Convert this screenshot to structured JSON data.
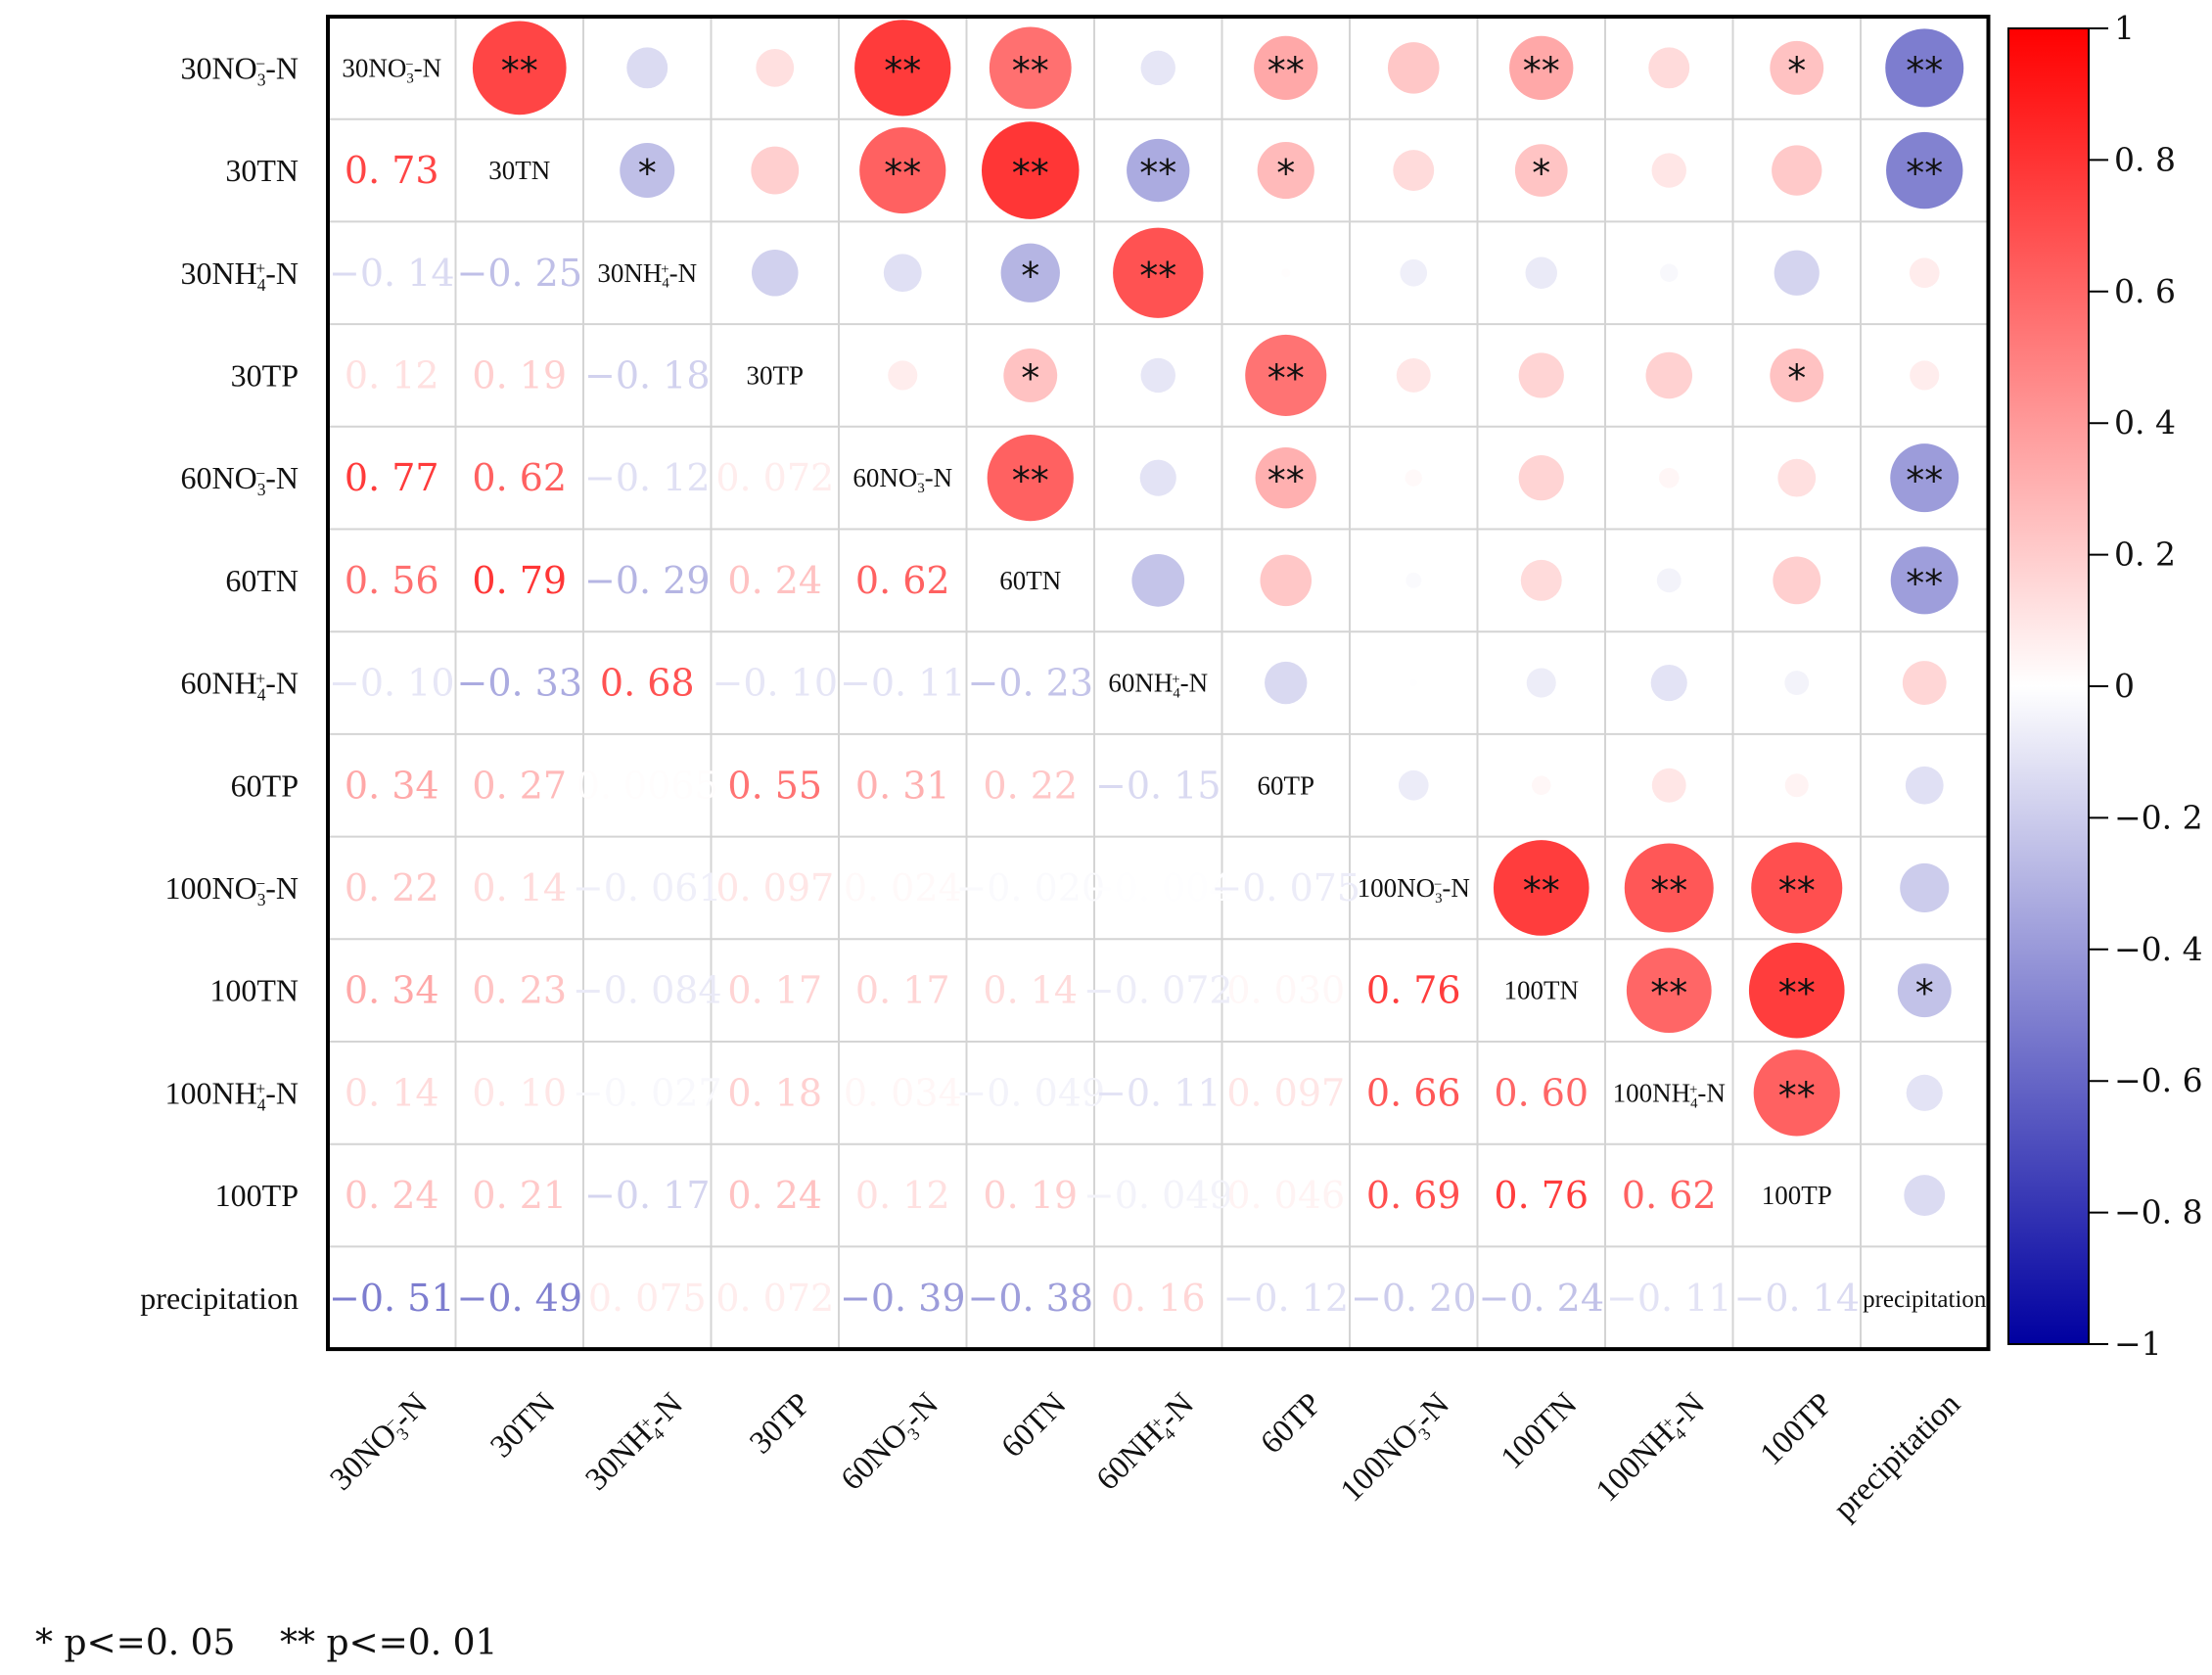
{
  "chart_data": {
    "type": "heatmap",
    "subtype": "correlation-matrix",
    "variables": [
      "30NO3-N",
      "30TN",
      "30NH4-N",
      "30TP",
      "60NO3-N",
      "60TN",
      "60NH4-N",
      "60TP",
      "100NO3-N",
      "100TN",
      "100NH4-N",
      "100TP",
      "precipitation"
    ],
    "matrix": [
      [
        1.0,
        0.73,
        -0.14,
        0.12,
        0.77,
        0.56,
        -0.1,
        0.34,
        0.22,
        0.34,
        0.14,
        0.24,
        -0.51
      ],
      [
        0.73,
        1.0,
        -0.25,
        0.19,
        0.62,
        0.79,
        -0.33,
        0.27,
        0.14,
        0.23,
        0.1,
        0.21,
        -0.49
      ],
      [
        -0.14,
        -0.25,
        1.0,
        -0.18,
        -0.12,
        -0.29,
        0.68,
        0.0065,
        -0.061,
        -0.084,
        -0.027,
        -0.17,
        0.075
      ],
      [
        0.12,
        0.19,
        -0.18,
        1.0,
        0.072,
        0.24,
        -0.1,
        0.55,
        0.097,
        0.17,
        0.18,
        0.24,
        0.072
      ],
      [
        0.77,
        0.62,
        -0.12,
        0.072,
        1.0,
        0.62,
        -0.11,
        0.31,
        0.024,
        0.17,
        0.034,
        0.12,
        -0.39
      ],
      [
        0.56,
        0.79,
        -0.29,
        0.24,
        0.62,
        1.0,
        -0.23,
        0.22,
        -0.02,
        0.14,
        -0.049,
        0.19,
        -0.38
      ],
      [
        -0.1,
        -0.33,
        0.68,
        -0.1,
        -0.11,
        -0.23,
        1.0,
        -0.15,
        -0.004,
        -0.072,
        -0.11,
        -0.049,
        0.16
      ],
      [
        0.34,
        0.27,
        0.0065,
        0.55,
        0.31,
        0.22,
        -0.15,
        1.0,
        -0.075,
        0.03,
        0.097,
        0.046,
        -0.12
      ],
      [
        0.22,
        0.14,
        -0.061,
        0.097,
        0.024,
        -0.02,
        -0.004,
        -0.075,
        1.0,
        0.76,
        0.66,
        0.69,
        -0.2
      ],
      [
        0.34,
        0.23,
        -0.084,
        0.17,
        0.17,
        0.14,
        -0.072,
        0.03,
        0.76,
        1.0,
        0.6,
        0.76,
        -0.24
      ],
      [
        0.14,
        0.1,
        -0.027,
        0.18,
        0.034,
        -0.049,
        -0.11,
        0.097,
        0.66,
        0.6,
        1.0,
        0.62,
        -0.11
      ],
      [
        0.24,
        0.21,
        -0.17,
        0.24,
        0.12,
        0.19,
        -0.049,
        0.046,
        0.69,
        0.76,
        0.62,
        1.0,
        -0.14
      ],
      [
        -0.51,
        -0.49,
        0.075,
        0.072,
        -0.39,
        -0.38,
        0.16,
        -0.12,
        -0.2,
        -0.24,
        -0.11,
        -0.14,
        1.0
      ]
    ],
    "lower_text": [
      [
        "",
        "",
        "",
        "",
        "",
        "",
        "",
        "",
        "",
        "",
        "",
        "",
        ""
      ],
      [
        "0. 73",
        "",
        "",
        "",
        "",
        "",
        "",
        "",
        "",
        "",
        "",
        "",
        ""
      ],
      [
        "−0. 14",
        "−0. 25",
        "",
        "",
        "",
        "",
        "",
        "",
        "",
        "",
        "",
        "",
        ""
      ],
      [
        "0. 12",
        "0. 19",
        "−0. 18",
        "",
        "",
        "",
        "",
        "",
        "",
        "",
        "",
        "",
        ""
      ],
      [
        "0. 77",
        "0. 62",
        "−0. 12",
        "0. 072",
        "",
        "",
        "",
        "",
        "",
        "",
        "",
        "",
        ""
      ],
      [
        "0. 56",
        "0. 79",
        "−0. 29",
        "0. 24",
        "0. 62",
        "",
        "",
        "",
        "",
        "",
        "",
        "",
        ""
      ],
      [
        "−0. 10",
        "−0. 33",
        "0. 68",
        "−0. 10",
        "−0. 11",
        "−0. 23",
        "",
        "",
        "",
        "",
        "",
        "",
        ""
      ],
      [
        "0. 34",
        "0. 27",
        "0. 0065",
        "0. 55",
        "0. 31",
        "0. 22",
        "−0. 15",
        "",
        "",
        "",
        "",
        "",
        ""
      ],
      [
        "0. 22",
        "0. 14",
        "−0. 061",
        "0. 097",
        "0. 024",
        "−0. 020",
        "−0. 004",
        "−0. 075",
        "",
        "",
        "",
        "",
        ""
      ],
      [
        "0. 34",
        "0. 23",
        "−0. 084",
        "0. 17",
        "0. 17",
        "0. 14",
        "−0. 072",
        "0. 030",
        "0. 76",
        "",
        "",
        "",
        ""
      ],
      [
        "0. 14",
        "0. 10",
        "−0. 027",
        "0. 18",
        "0. 034",
        "−0. 049",
        "−0. 11",
        "0. 097",
        "0. 66",
        "0. 60",
        "",
        "",
        ""
      ],
      [
        "0. 24",
        "0. 21",
        "−0. 17",
        "0. 24",
        "0. 12",
        "0. 19",
        "−0. 049",
        "0. 046",
        "0. 69",
        "0. 76",
        "0. 62",
        "",
        ""
      ],
      [
        "−0. 51",
        "−0. 49",
        "0. 075",
        "0. 072",
        "−0. 39",
        "−0. 38",
        "0. 16",
        "−0. 12",
        "−0. 20",
        "−0. 24",
        "−0. 11",
        "−0. 14",
        ""
      ]
    ],
    "significance": [
      [
        "",
        "**",
        "",
        "",
        "**",
        "**",
        "",
        "**",
        "",
        "**",
        "",
        "*",
        "**"
      ],
      [
        "",
        "",
        "*",
        "",
        "**",
        "**",
        "**",
        "*",
        "",
        "*",
        "",
        "",
        "**"
      ],
      [
        "",
        "",
        "",
        "",
        "",
        "*",
        "**",
        "",
        "",
        "",
        "",
        "",
        ""
      ],
      [
        "",
        "",
        "",
        "",
        "",
        "*",
        "",
        "**",
        "",
        "",
        "",
        "*",
        ""
      ],
      [
        "",
        "",
        "",
        "",
        "",
        "**",
        "",
        "**",
        "",
        "",
        "",
        "",
        "**"
      ],
      [
        "",
        "",
        "",
        "",
        "",
        "",
        "",
        "",
        "",
        "",
        "",
        "",
        "**"
      ],
      [
        "",
        "",
        "",
        "",
        "",
        "",
        "",
        "",
        "",
        "",
        "",
        "",
        ""
      ],
      [
        "",
        "",
        "",
        "",
        "",
        "",
        "",
        "",
        "",
        "",
        "",
        "",
        ""
      ],
      [
        "",
        "",
        "",
        "",
        "",
        "",
        "",
        "",
        "",
        "**",
        "**",
        "**",
        ""
      ],
      [
        "",
        "",
        "",
        "",
        "",
        "",
        "",
        "",
        "",
        "",
        "**",
        "**",
        "*"
      ],
      [
        "",
        "",
        "",
        "",
        "",
        "",
        "",
        "",
        "",
        "",
        "",
        "**",
        ""
      ],
      [
        "",
        "",
        "",
        "",
        "",
        "",
        "",
        "",
        "",
        "",
        "",
        "",
        ""
      ],
      [
        "",
        "",
        "",
        "",
        "",
        "",
        "",
        "",
        "",
        "",
        "",
        "",
        ""
      ]
    ],
    "colorbar": {
      "range": [
        -1,
        1
      ],
      "ticks": [
        "1",
        "0. 8",
        "0. 6",
        "0. 4",
        "0. 2",
        "0",
        "−0. 2",
        "−0. 4",
        "−0. 6",
        "−0. 8",
        "−1"
      ],
      "colors": {
        "negative": "#0000a0",
        "zero": "#ffffff",
        "positive": "#ff0000"
      }
    },
    "legend_note": {
      "single": "* p<=0. 05",
      "double": "** p<=0. 01"
    },
    "layout": {
      "upper": "circles sized and colored by correlation with significance stars",
      "diagonal": "variable names",
      "lower": "correlation coefficient text colored by value"
    }
  }
}
